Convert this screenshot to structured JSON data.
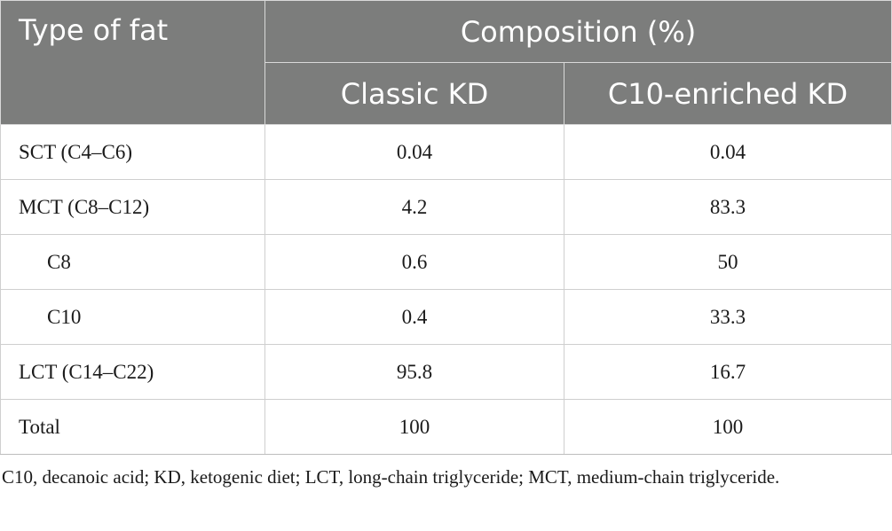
{
  "table": {
    "header": {
      "type_label": "Type of fat",
      "group_label": "Composition (%)",
      "col1_label": "Classic KD",
      "col2_label": "C10-enriched KD"
    },
    "rows": [
      {
        "label": "SCT (C4–C6)",
        "classic": "0.04",
        "c10": "0.04"
      },
      {
        "label": "MCT (C8–C12)",
        "classic": "4.2",
        "c10": "83.3"
      },
      {
        "label": "C8",
        "classic": "0.6",
        "c10": "50"
      },
      {
        "label": "C10",
        "classic": "0.4",
        "c10": "33.3"
      },
      {
        "label": "LCT (C14–C22)",
        "classic": "95.8",
        "c10": "16.7"
      },
      {
        "label": "Total",
        "classic": "100",
        "c10": "100"
      }
    ]
  },
  "footnote": "C10, decanoic acid; KD, ketogenic diet; LCT, long-chain triglyceride; MCT, medium-chain triglyceride."
}
